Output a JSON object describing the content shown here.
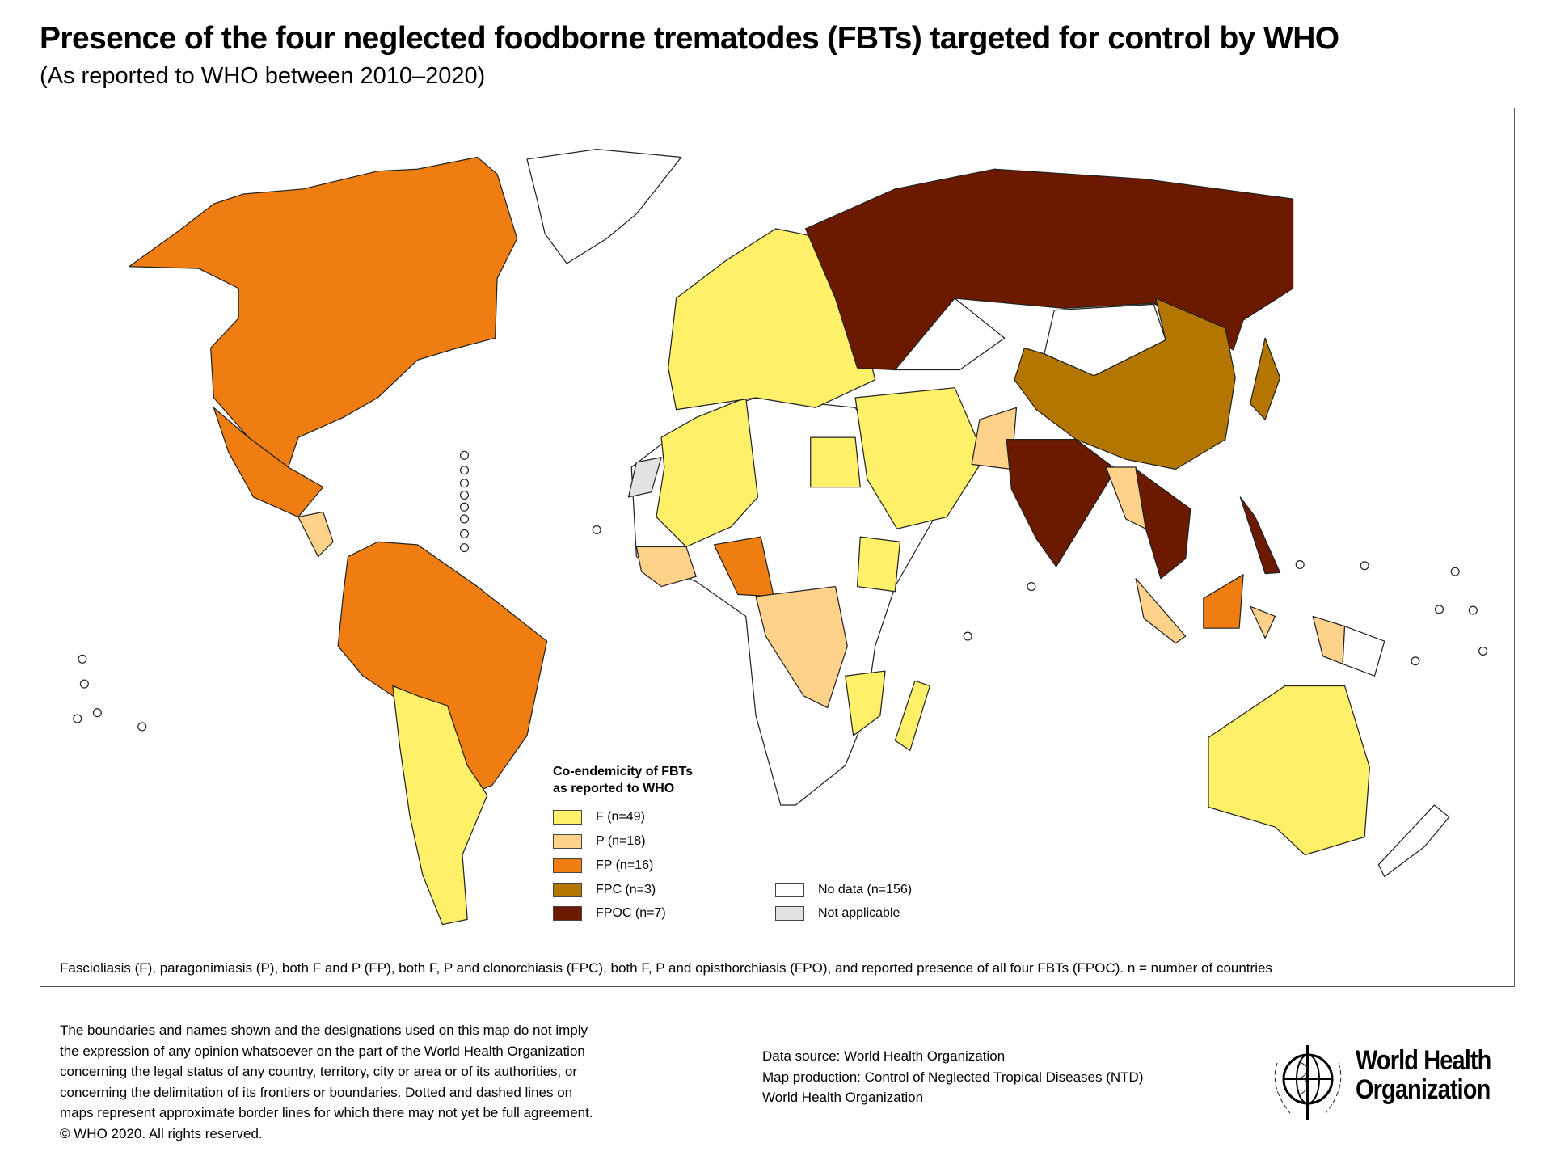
{
  "header": {
    "title": "Presence of the four neglected foodborne trematodes (FBTs) targeted for control by WHO",
    "subtitle": "(As reported to WHO between 2010–2020)"
  },
  "legend": {
    "title_line1": "Co-endemicity of FBTs",
    "title_line2": "as reported to WHO",
    "items": [
      {
        "label": "F (n=49)",
        "color": "#fff06a"
      },
      {
        "label": "P (n=18)",
        "color": "#ffd28c"
      },
      {
        "label": "FP (n=16)",
        "color": "#f07d12"
      },
      {
        "label": "FPC (n=3)",
        "color": "#b37600"
      },
      {
        "label": "FPOC (n=7)",
        "color": "#6b1a00"
      }
    ],
    "other_items": [
      {
        "label": "No data (n=156)",
        "color": "#ffffff"
      },
      {
        "label": "Not applicable",
        "color": "#e2e2e2"
      }
    ]
  },
  "footnote": "Fascioliasis (F), paragonimiasis (P), both F and P (FP), both F, P and clonorchiasis (FPC), both F, P and opisthorchiasis (FPO), and reported presence of all four FBTs (FPOC). n = number of countries",
  "disclaimer": [
    "The boundaries and names shown and the designations used on this map do not imply",
    "the expression of any opinion whatsoever on the part of the World Health Organization",
    "concerning the legal status of any country, territory, city or area or of its authorities, or",
    "concerning the delimitation of its frontiers or boundaries. Dotted and dashed lines on",
    "maps represent approximate border lines for which there may not yet be full agreement.",
    "© WHO 2020. All rights reserved."
  ],
  "credits": [
    "Data source: World Health Organization",
    "Map production: Control of Neglected Tropical Diseases (NTD)",
    "World Health Organization"
  ],
  "logo": {
    "line1": "World Health",
    "line2": "Organization"
  }
}
